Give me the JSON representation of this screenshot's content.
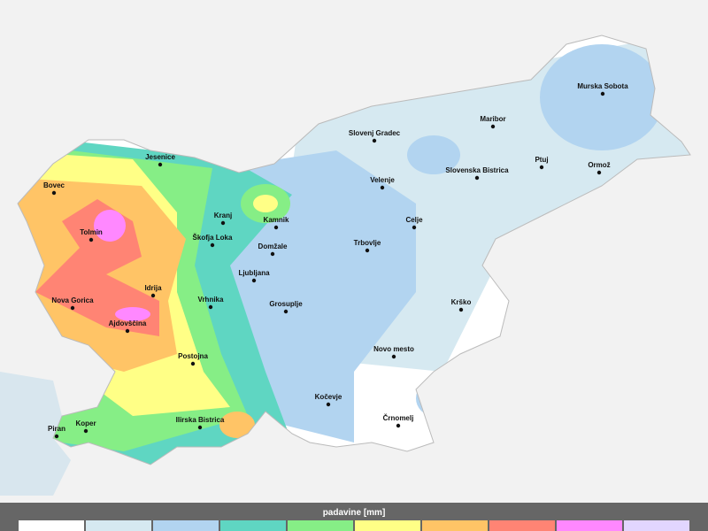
{
  "map": {
    "cities": [
      "Murska Sobota",
      "Maribor",
      "Slovenj Gradec",
      "Ptuj",
      "Ormož",
      "Jesenice",
      "Slovenska Bistrica",
      "Velenje",
      "Bovec",
      "Kranj",
      "Kamnik",
      "Celje",
      "Tolmin",
      "Škofja Loka",
      "Domžale",
      "Trbovlje",
      "Ljubljana",
      "Idrija",
      "Nova Gorica",
      "Vrhnika",
      "Grosuplje",
      "Krško",
      "Ajdovščina",
      "Novo mesto",
      "Postojna",
      "Kočevje",
      "Ilirska Bistrica",
      "Črnomelj",
      "Koper",
      "Piran"
    ],
    "legend": {
      "title": "padavine [mm]",
      "colors": [
        "#ffffff",
        "#d6e9f1",
        "#b2d4f0",
        "#5fd6c2",
        "#86ee86",
        "#ffff86",
        "#ffc466",
        "#ff8474",
        "#ff88ff",
        "#e2d6ff"
      ]
    }
  }
}
